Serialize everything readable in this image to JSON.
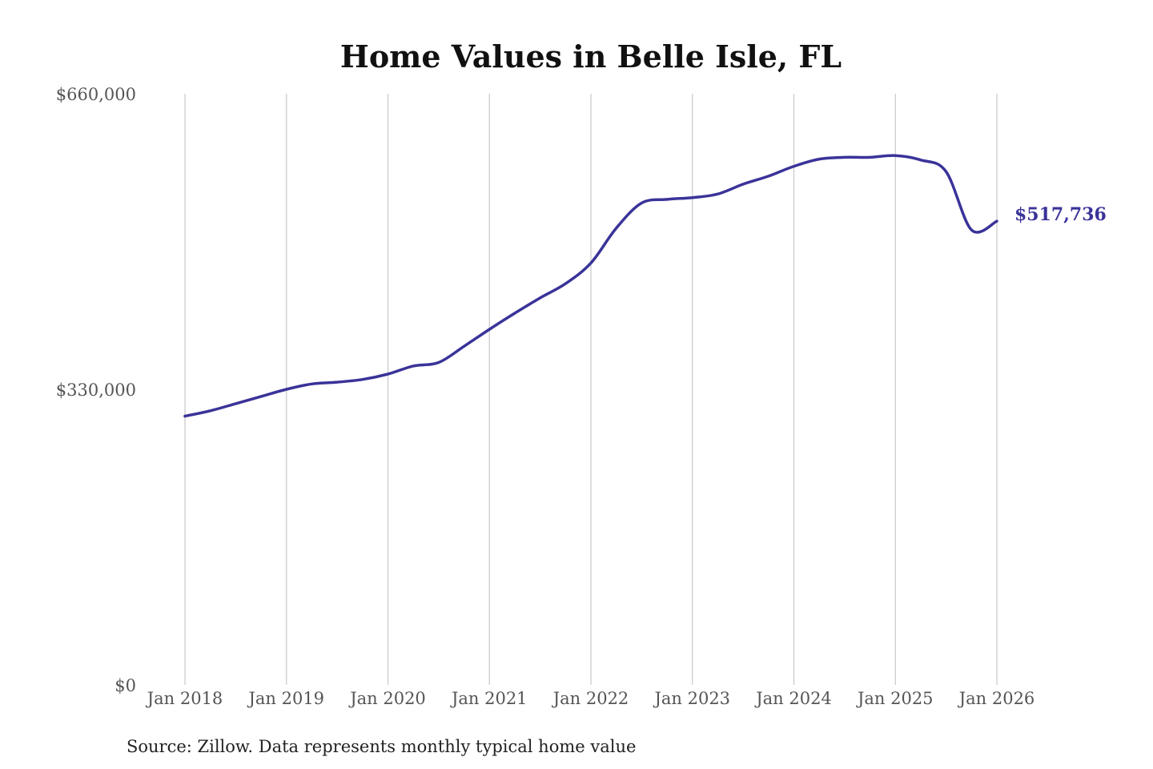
{
  "chart_data": {
    "type": "line",
    "title": "Home Values in Belle Isle, FL",
    "source": "Source: Zillow. Data represents monthly typical home value",
    "ylim": [
      0,
      660000
    ],
    "y_ticks": [
      {
        "value": 0,
        "label": "$0"
      },
      {
        "value": 330000,
        "label": "$330,000"
      },
      {
        "value": 660000,
        "label": "$660,000"
      }
    ],
    "x_ticks": [
      {
        "value": 2018.0,
        "label": "Jan 2018"
      },
      {
        "value": 2019.0,
        "label": "Jan 2019"
      },
      {
        "value": 2020.0,
        "label": "Jan 2020"
      },
      {
        "value": 2021.0,
        "label": "Jan 2021"
      },
      {
        "value": 2022.0,
        "label": "Jan 2022"
      },
      {
        "value": 2023.0,
        "label": "Jan 2023"
      },
      {
        "value": 2024.0,
        "label": "Jan 2024"
      },
      {
        "value": 2025.0,
        "label": "Jan 2025"
      },
      {
        "value": 2026.0,
        "label": "Jan 2026"
      }
    ],
    "xlim": [
      2018.0,
      2026.0
    ],
    "grid": "vertical",
    "line_color": "#3a3399",
    "end_label": "$517,736",
    "series": [
      {
        "x": [
          2018.0,
          2018.25,
          2018.5,
          2018.75,
          2019.0,
          2019.25,
          2019.5,
          2019.75,
          2020.0,
          2020.25,
          2020.5,
          2020.75,
          2021.0,
          2021.25,
          2021.5,
          2021.75,
          2022.0,
          2022.25,
          2022.5,
          2022.75,
          2023.0,
          2023.25,
          2023.5,
          2023.75,
          2024.0,
          2024.25,
          2024.5,
          2024.75,
          2025.0,
          2025.25,
          2025.5,
          2025.75,
          2026.0
        ],
        "y": [
          300000,
          306000,
          314000,
          322000,
          330000,
          336000,
          338000,
          341000,
          347000,
          356000,
          360000,
          378000,
          397000,
          415000,
          432000,
          448000,
          471000,
          510000,
          538000,
          542000,
          544000,
          548000,
          559000,
          568000,
          579000,
          587000,
          589000,
          589000,
          591000,
          586000,
          573000,
          508000,
          517736
        ]
      }
    ]
  }
}
